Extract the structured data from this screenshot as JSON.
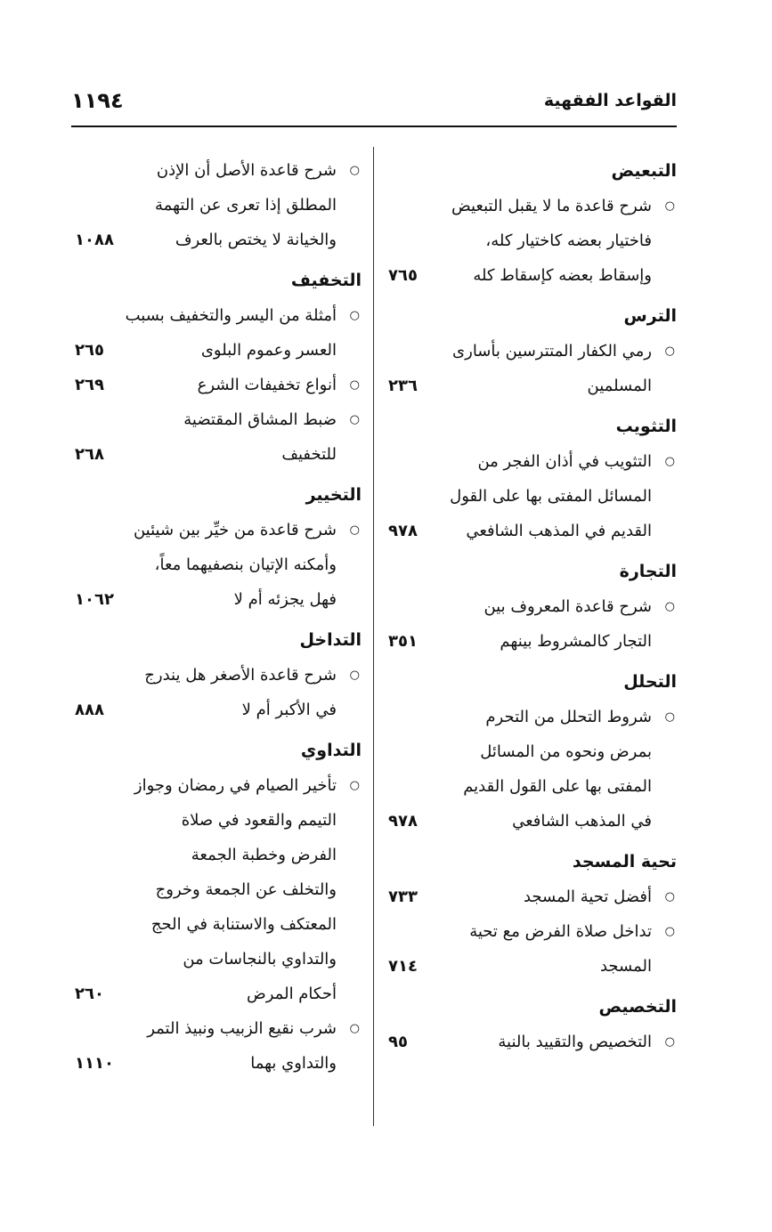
{
  "header": {
    "page_number": "١١٩٤",
    "running_title": "القواعد الفقهية"
  },
  "columns": [
    {
      "side": "right",
      "sections": [
        {
          "heading": "التبعيض",
          "entries": [
            {
              "lines": [
                "شرح قاعدة ما لا يقبل التبعيض",
                "فاختيار بعضه كاختيار كله،",
                "وإسقاط بعضه كإسقاط كله"
              ],
              "page": "٧٦٥"
            }
          ]
        },
        {
          "heading": "الترس",
          "entries": [
            {
              "lines": [
                "رمي الكفار المتترسين بأسارى",
                "المسلمين"
              ],
              "page": "٢٣٦"
            }
          ]
        },
        {
          "heading": "التثويب",
          "entries": [
            {
              "lines": [
                "التثويب في أذان الفجر من",
                "المسائل المفتى بها على القول",
                "القديم في المذهب الشافعي"
              ],
              "page": "٩٧٨"
            }
          ]
        },
        {
          "heading": "التجارة",
          "entries": [
            {
              "lines": [
                "شرح قاعدة المعروف بين",
                "التجار كالمشروط بينهم"
              ],
              "page": "٣٥١"
            }
          ]
        },
        {
          "heading": "التحلل",
          "entries": [
            {
              "lines": [
                "شروط التحلل من التحرم",
                "بمرض ونحوه من المسائل",
                "المفتى بها على القول القديم",
                "في المذهب الشافعي"
              ],
              "page": "٩٧٨"
            }
          ]
        },
        {
          "heading": "تحية المسجد",
          "entries": [
            {
              "lines": [
                "أفضل تحية المسجد"
              ],
              "page": "٧٣٣"
            },
            {
              "lines": [
                "تداخل صلاة الفرض مع تحية",
                "المسجد"
              ],
              "page": "٧١٤"
            }
          ]
        },
        {
          "heading": "التخصيص",
          "entries": [
            {
              "lines": [
                "التخصيص والتقييد بالنية"
              ],
              "page": "٩٥"
            }
          ]
        }
      ]
    },
    {
      "side": "left",
      "sections": [
        {
          "heading": "",
          "entries": [
            {
              "lines": [
                "شرح قاعدة الأصل أن الإذن",
                "المطلق إذا تعرى عن التهمة",
                "والخيانة لا يختص بالعرف"
              ],
              "page": "١٠٨٨"
            }
          ]
        },
        {
          "heading": "التخفيف",
          "entries": [
            {
              "lines": [
                "أمثلة من اليسر والتخفيف بسبب",
                "العسر وعموم البلوى"
              ],
              "page": "٢٦٥"
            },
            {
              "lines": [
                "أنواع تخفيفات الشرع"
              ],
              "page": "٢٦٩"
            },
            {
              "lines": [
                "ضبط المشاق المقتضية",
                "للتخفيف"
              ],
              "page": "٢٦٨"
            }
          ]
        },
        {
          "heading": "التخيير",
          "entries": [
            {
              "lines": [
                "شرح قاعدة من خيِّر بين شيئين",
                "وأمكنه الإتيان بنصفيهما معاً،",
                "فهل يجزئه أم لا"
              ],
              "page": "١٠٦٢"
            }
          ]
        },
        {
          "heading": "التداخل",
          "entries": [
            {
              "lines": [
                "شرح قاعدة الأصغر هل يندرج",
                "في الأكبر أم لا"
              ],
              "page": "٨٨٨"
            }
          ]
        },
        {
          "heading": "التداوي",
          "entries": [
            {
              "lines": [
                "تأخير الصيام في رمضان وجواز",
                "التيمم والقعود في صلاة",
                "الفرض وخطبة الجمعة",
                "والتخلف عن الجمعة وخروج",
                "المعتكف والاستنابة في الحج",
                "والتداوي بالنجاسات من",
                "أحكام المرض"
              ],
              "page": "٢٦٠"
            },
            {
              "lines": [
                "شرب نقيع الزبيب ونبيذ التمر",
                "والتداوي بهما"
              ],
              "page": "١١١٠"
            }
          ]
        }
      ]
    }
  ]
}
